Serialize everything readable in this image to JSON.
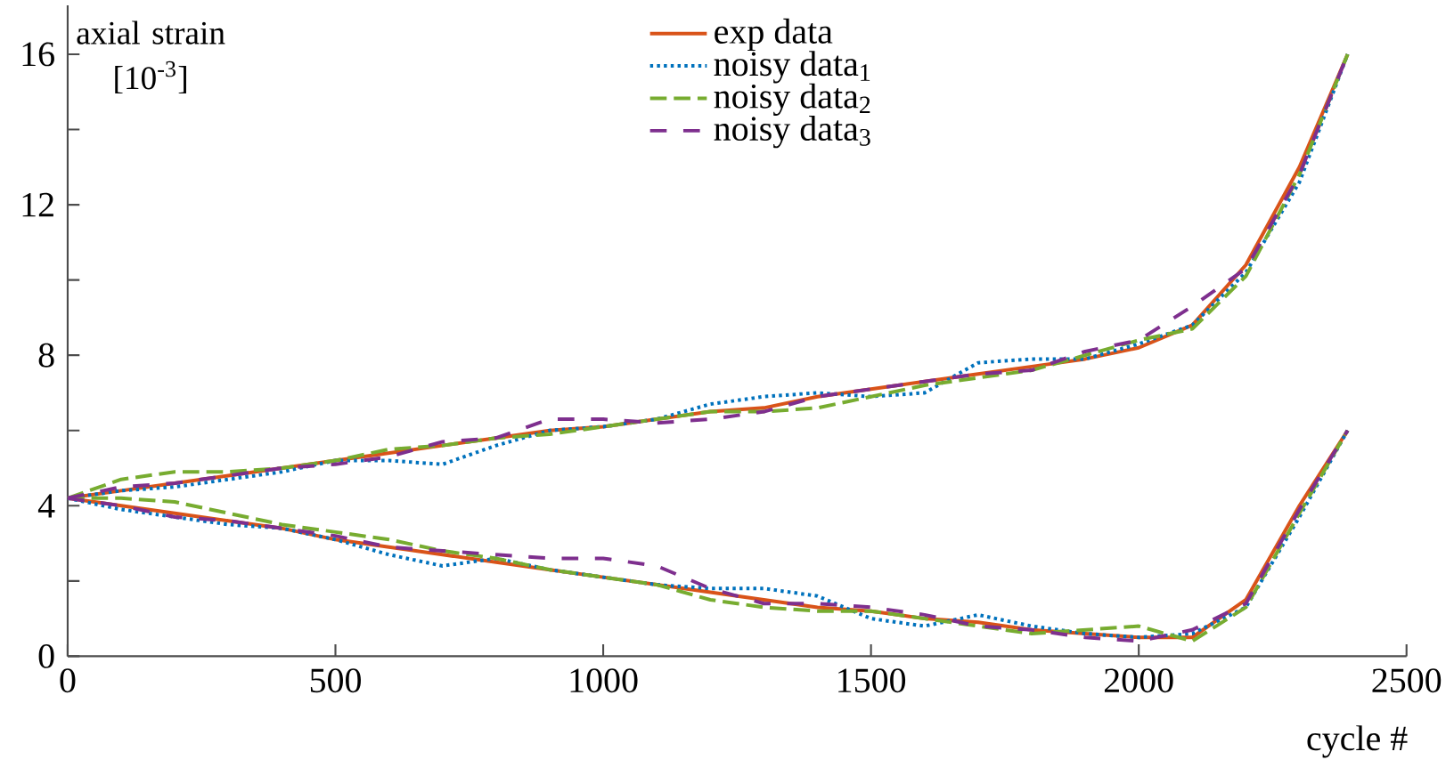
{
  "chart_data": {
    "type": "line",
    "xlabel": "cycle #",
    "ylabel": "axial strain [10$^{-3}$]",
    "xlim": [
      0,
      2500
    ],
    "ylim": [
      0,
      17.3
    ],
    "xticks": [
      0,
      500,
      1000,
      1500,
      2000,
      2500
    ],
    "yticks": [
      0,
      {
        "value": 2,
        "label": null
      },
      4,
      {
        "value": 6,
        "label": null
      },
      8,
      {
        "value": 10,
        "label": null
      },
      12,
      {
        "value": 14,
        "label": null
      },
      16
    ],
    "grid": false,
    "legend": "top",
    "series": [
      {
        "name": "exp data",
        "color": "#d95319",
        "line_style": "solid",
        "x": [
          0,
          100,
          200,
          300,
          400,
          500,
          600,
          700,
          800,
          900,
          1000,
          1100,
          1200,
          1300,
          1400,
          1500,
          1600,
          1700,
          1800,
          1900,
          2000,
          2100,
          2200,
          2300,
          2390,
          null,
          0,
          100,
          200,
          300,
          400,
          500,
          600,
          700,
          800,
          900,
          1000,
          1100,
          1200,
          1300,
          1400,
          1500,
          1600,
          1700,
          1800,
          1900,
          2000,
          2100,
          2200,
          2300,
          2390
        ],
        "values": [
          4.2,
          4.4,
          4.6,
          4.8,
          5.0,
          5.2,
          5.4,
          5.6,
          5.8,
          6.0,
          6.1,
          6.3,
          6.5,
          6.6,
          6.9,
          7.1,
          7.3,
          7.5,
          7.7,
          7.9,
          8.2,
          8.8,
          10.4,
          13.0,
          16.0,
          null,
          4.2,
          4.0,
          3.8,
          3.6,
          3.4,
          3.1,
          2.9,
          2.7,
          2.5,
          2.3,
          2.1,
          1.9,
          1.7,
          1.5,
          1.3,
          1.2,
          1.0,
          0.9,
          0.7,
          0.6,
          0.5,
          0.5,
          1.5,
          4.0,
          6.0
        ]
      },
      {
        "name": "noisy data$_{1}$",
        "color": "#0072bd",
        "line_style": "dotted",
        "x": [
          0,
          100,
          200,
          300,
          400,
          500,
          600,
          700,
          800,
          900,
          1000,
          1100,
          1200,
          1300,
          1400,
          1500,
          1600,
          1700,
          1800,
          1900,
          2000,
          2100,
          2200,
          2300,
          2390,
          null,
          0,
          100,
          200,
          300,
          400,
          500,
          600,
          700,
          800,
          900,
          1000,
          1100,
          1200,
          1300,
          1400,
          1500,
          1600,
          1700,
          1800,
          1900,
          2000,
          2100,
          2200,
          2300,
          2390
        ],
        "values": [
          4.2,
          4.4,
          4.5,
          4.7,
          4.9,
          5.2,
          5.2,
          5.1,
          5.6,
          6.0,
          6.1,
          6.3,
          6.7,
          6.9,
          7.0,
          6.9,
          7.0,
          7.8,
          7.9,
          7.9,
          8.3,
          8.8,
          10.2,
          12.6,
          16.0,
          null,
          4.2,
          3.9,
          3.7,
          3.5,
          3.4,
          3.1,
          2.7,
          2.4,
          2.6,
          2.3,
          2.1,
          1.9,
          1.8,
          1.8,
          1.6,
          1.0,
          0.8,
          1.1,
          0.8,
          0.6,
          0.5,
          0.6,
          1.3,
          3.7,
          6.0
        ]
      },
      {
        "name": "noisy data$_{2}$",
        "color": "#77ac30",
        "line_style": "dashed",
        "x": [
          0,
          100,
          200,
          300,
          400,
          500,
          600,
          700,
          800,
          900,
          1000,
          1100,
          1200,
          1300,
          1400,
          1500,
          1600,
          1700,
          1800,
          1900,
          2000,
          2100,
          2200,
          2300,
          2390,
          null,
          0,
          100,
          200,
          300,
          400,
          500,
          600,
          700,
          800,
          900,
          1000,
          1100,
          1200,
          1300,
          1400,
          1500,
          1600,
          1700,
          1800,
          1900,
          2000,
          2100,
          2200,
          2300,
          2390
        ],
        "values": [
          4.2,
          4.7,
          4.9,
          4.9,
          5.0,
          5.2,
          5.5,
          5.6,
          5.8,
          5.9,
          6.1,
          6.3,
          6.5,
          6.5,
          6.6,
          6.9,
          7.2,
          7.4,
          7.6,
          8.0,
          8.4,
          8.7,
          10.1,
          12.8,
          16.0,
          null,
          4.2,
          4.2,
          4.1,
          3.8,
          3.5,
          3.3,
          3.1,
          2.8,
          2.6,
          2.3,
          2.1,
          1.9,
          1.5,
          1.3,
          1.2,
          1.2,
          1.0,
          0.8,
          0.6,
          0.7,
          0.8,
          0.4,
          1.3,
          3.8,
          6.0
        ]
      },
      {
        "name": "noisy data$_{3}$",
        "color": "#7e2f8e",
        "line_style": "dashed",
        "x": [
          0,
          100,
          200,
          300,
          400,
          500,
          600,
          700,
          800,
          900,
          1000,
          1100,
          1200,
          1300,
          1400,
          1500,
          1600,
          1700,
          1800,
          1900,
          2000,
          2100,
          2200,
          2300,
          2390,
          null,
          0,
          100,
          200,
          300,
          400,
          500,
          600,
          700,
          800,
          900,
          1000,
          1100,
          1200,
          1300,
          1400,
          1500,
          1600,
          1700,
          1800,
          1900,
          2000,
          2100,
          2200,
          2300,
          2390
        ],
        "values": [
          4.2,
          4.5,
          4.6,
          4.8,
          5.0,
          5.1,
          5.3,
          5.7,
          5.8,
          6.3,
          6.3,
          6.2,
          6.3,
          6.5,
          6.9,
          7.1,
          7.3,
          7.5,
          7.6,
          8.1,
          8.4,
          9.3,
          10.3,
          12.8,
          16.0,
          null,
          4.2,
          4.0,
          3.7,
          3.6,
          3.4,
          3.2,
          2.9,
          2.8,
          2.7,
          2.6,
          2.6,
          2.4,
          1.8,
          1.4,
          1.4,
          1.3,
          1.1,
          0.8,
          0.7,
          0.5,
          0.4,
          0.7,
          1.4,
          3.9,
          6.0
        ]
      }
    ]
  }
}
